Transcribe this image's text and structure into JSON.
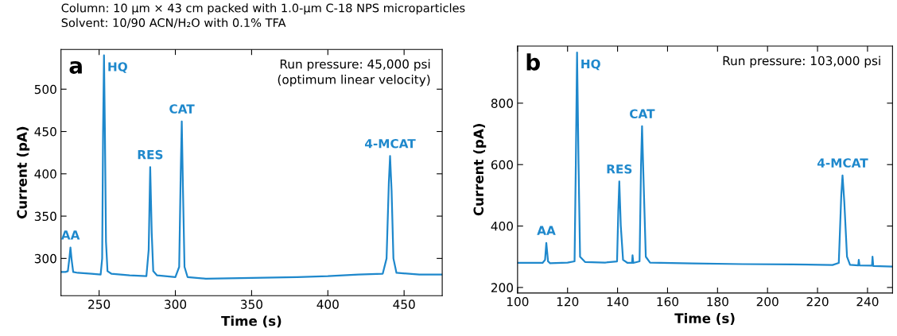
{
  "chart_data": [
    {
      "type": "line",
      "title": "Column: 10 μm × 43 cm packed with 1.0-μm C-18 NPS microparticles",
      "subtitle": "Solvent: 10/90 ACN/H₂O with 0.1% TFA",
      "xlabel": "Time (s)",
      "ylabel": "Current (pA)",
      "xlim": [
        225,
        475
      ],
      "xticks": [
        250,
        300,
        350,
        400,
        450
      ],
      "ylim": [
        256,
        547
      ],
      "yticks": [
        300,
        350,
        400,
        450,
        500
      ],
      "grid": false,
      "legend": false,
      "marker": "none",
      "line_style": "solid",
      "annotations": [
        "a",
        "Run pressure: 45,000 psi\n(optimum linear velocity)",
        {
          "text": "AA",
          "x": 231.2,
          "y": 313
        },
        {
          "text": "HQ",
          "x": 253.2,
          "y": 540
        },
        {
          "text": "RES",
          "x": 283.5,
          "y": 408
        },
        {
          "text": "CAT",
          "x": 304.2,
          "y": 462
        },
        {
          "text": "4-MCAT",
          "x": 440.8,
          "y": 421
        }
      ],
      "series": [
        {
          "color": "#1e88cc",
          "x": [
            225,
            228,
            229.5,
            230.5,
            231.2,
            232,
            233,
            236,
            245,
            251,
            252,
            252.6,
            253.2,
            253.8,
            254.5,
            255.5,
            258,
            270,
            281,
            282.5,
            283.5,
            284.5,
            285.5,
            288,
            300,
            302.5,
            303.5,
            304.2,
            305,
            306,
            308,
            320,
            350,
            380,
            400,
            420,
            436,
            438.5,
            440,
            440.8,
            441.8,
            443,
            445,
            460,
            475
          ],
          "values": [
            284,
            284,
            285,
            300,
            313,
            298,
            284,
            283,
            282,
            281,
            300,
            450,
            540,
            450,
            320,
            285,
            282,
            280,
            279,
            310,
            408,
            330,
            285,
            280,
            278,
            290,
            400,
            462,
            380,
            290,
            278,
            276,
            277,
            278,
            279,
            281,
            282,
            300,
            390,
            421,
            380,
            300,
            283,
            281,
            281
          ]
        }
      ]
    },
    {
      "type": "line",
      "xlabel": "Time (s)",
      "ylabel": "Current (pA)",
      "xlim": [
        100,
        250
      ],
      "xticks": [
        100,
        120,
        140,
        160,
        180,
        200,
        220,
        240
      ],
      "ylim": [
        182,
        986
      ],
      "yticks": [
        200,
        400,
        600,
        800
      ],
      "grid": false,
      "legend": false,
      "marker": "none",
      "line_style": "solid",
      "annotations": [
        "b",
        "Run pressure: 103,000 psi",
        {
          "text": "AA",
          "x": 111.5,
          "y": 345
        },
        {
          "text": "HQ",
          "x": 123.8,
          "y": 965
        },
        {
          "text": "RES",
          "x": 140.7,
          "y": 545
        },
        {
          "text": "CAT",
          "x": 149.8,
          "y": 725
        },
        {
          "text": "4-MCAT",
          "x": 230,
          "y": 565
        }
      ],
      "series": [
        {
          "color": "#1e88cc",
          "x": [
            100,
            110,
            111,
            111.5,
            112.2,
            113,
            120,
            122.8,
            123.3,
            123.8,
            124.4,
            125,
            127,
            135,
            139.8,
            140.3,
            140.7,
            141.3,
            142.2,
            144,
            145.8,
            146,
            146.3,
            148.8,
            149.4,
            149.8,
            150.4,
            151.3,
            153,
            170,
            190,
            210,
            226,
            228.5,
            229.5,
            230,
            230.7,
            231.8,
            233,
            236.3,
            236.5,
            236.8,
            241.8,
            242,
            242.3,
            250
          ],
          "values": [
            280,
            280,
            290,
            345,
            285,
            279,
            281,
            285,
            600,
            965,
            600,
            300,
            283,
            281,
            285,
            450,
            545,
            400,
            290,
            280,
            280,
            305,
            280,
            285,
            600,
            725,
            550,
            300,
            281,
            278,
            276,
            275,
            273,
            280,
            500,
            565,
            480,
            300,
            274,
            272,
            290,
            272,
            271,
            300,
            270,
            268
          ]
        }
      ]
    }
  ]
}
